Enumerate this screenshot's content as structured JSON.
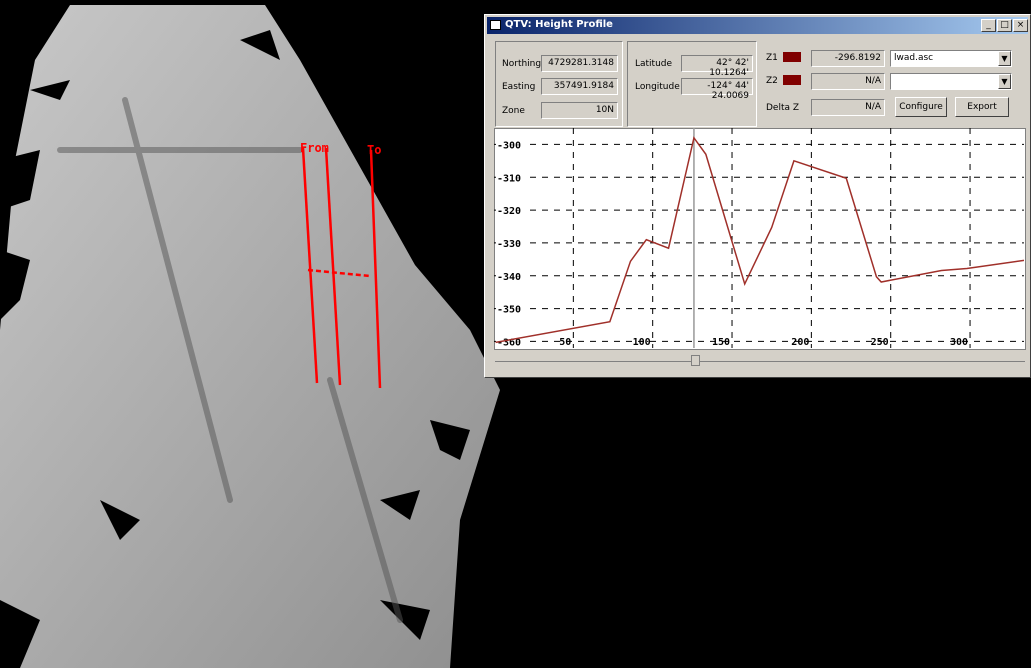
{
  "terrain": {
    "from_label": "From",
    "to_label": "To"
  },
  "window": {
    "title": "QTV: Height Profile",
    "fields": {
      "northing_label": "Northing",
      "northing": "4729281.3148",
      "easting_label": "Easting",
      "easting": "357491.9184",
      "zone_label": "Zone",
      "zone": "10N",
      "latitude_label": "Latitude",
      "latitude": "42° 42' 10.1264'",
      "longitude_label": "Longitude",
      "longitude": "-124° 44' 24.0069",
      "z1_label": "Z1",
      "z1": "-296.8192",
      "z2_label": "Z2",
      "z2": "N/A",
      "deltaz_label": "Delta Z",
      "deltaz": "N/A",
      "file": "lwad.asc",
      "file2": ""
    },
    "buttons": {
      "configure": "Configure",
      "export": "Export"
    }
  },
  "chart_data": {
    "type": "line",
    "xlim": [
      0,
      334
    ],
    "ylim": [
      -362,
      -295
    ],
    "xticks": [
      50,
      100,
      150,
      200,
      250,
      300
    ],
    "yticks": [
      -300,
      -310,
      -320,
      -330,
      -340,
      -350,
      -360
    ],
    "grid": true,
    "cursor_x": 126,
    "series": [
      {
        "color": "#a0302a",
        "x": [
          1,
          73,
          86,
          96,
          110,
          126,
          133.5,
          158,
          175,
          189,
          222,
          241,
          244,
          282,
          298,
          334
        ],
        "values": [
          -360.3,
          -354,
          -335.6,
          -329,
          -331.6,
          -298,
          -303,
          -342.5,
          -325.3,
          -305,
          -310.3,
          -340.3,
          -341.9,
          -338.4,
          -337.8,
          -335.3
        ]
      }
    ]
  }
}
